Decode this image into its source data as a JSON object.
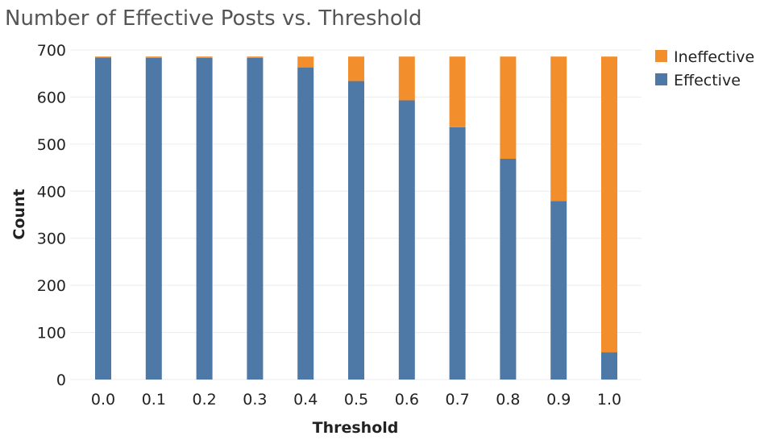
{
  "chart_data": {
    "type": "bar",
    "stacked": true,
    "title": "Number of Effective Posts vs. Threshold",
    "xlabel": "Threshold",
    "ylabel": "Count",
    "categories": [
      "0.0",
      "0.1",
      "0.2",
      "0.3",
      "0.4",
      "0.5",
      "0.6",
      "0.7",
      "0.8",
      "0.9",
      "1.0"
    ],
    "series": [
      {
        "name": "Effective",
        "color": "#4e79a7",
        "values": [
          684,
          683,
          683,
          683,
          663,
          634,
          593,
          536,
          469,
          379,
          58
        ]
      },
      {
        "name": "Ineffective",
        "color": "#f28e2b",
        "values": [
          2,
          3,
          3,
          3,
          23,
          52,
          93,
          150,
          217,
          307,
          628
        ]
      }
    ],
    "ylim": [
      0,
      700
    ],
    "yticks": [
      "0",
      "100",
      "200",
      "300",
      "400",
      "500",
      "600",
      "700"
    ],
    "grid": true,
    "legend": {
      "placement": "top-right",
      "items": [
        {
          "label": "Ineffective",
          "color": "#f28e2b"
        },
        {
          "label": "Effective",
          "color": "#4e79a7"
        }
      ]
    }
  }
}
